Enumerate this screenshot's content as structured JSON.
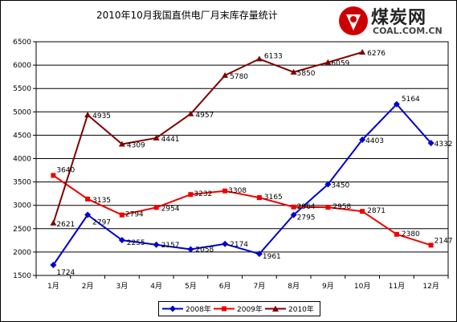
{
  "chart_data": {
    "type": "line",
    "title": "2010年10月我国直供电厂月末库存量统计",
    "xlabel": "",
    "ylabel": "",
    "categories": [
      "1月",
      "2月",
      "3月",
      "4月",
      "5月",
      "6月",
      "7月",
      "8月",
      "9月",
      "10月",
      "11月",
      "12月"
    ],
    "ylim": [
      1500,
      6500
    ],
    "yticks": [
      1500,
      2000,
      2500,
      3000,
      3500,
      4000,
      4500,
      5000,
      5500,
      6000,
      6500
    ],
    "grid": true,
    "legend_position": "bottom",
    "series": [
      {
        "name": "2008年",
        "color": "#0000cc",
        "marker": "diamond",
        "values": [
          1724,
          2797,
          2255,
          2157,
          2058,
          2174,
          1961,
          2795,
          3450,
          4403,
          5164,
          4332
        ]
      },
      {
        "name": "2009年",
        "color": "#ee0000",
        "marker": "square",
        "values": [
          3640,
          3135,
          2794,
          2954,
          3232,
          3308,
          3165,
          2964,
          2958,
          2871,
          2380,
          2147
        ]
      },
      {
        "name": "2010年",
        "color": "#800000",
        "marker": "triangle",
        "values": [
          2621,
          4935,
          4309,
          4441,
          4957,
          5780,
          6133,
          5850,
          6059,
          6276,
          null,
          null
        ]
      }
    ]
  },
  "logo": {
    "text_cn": "煤炭网",
    "text_en": "COAL.COM.CN",
    "brand_color": "#cc0000"
  },
  "colors": {
    "plot_background": "#ffffff",
    "gridline": "#000000"
  }
}
